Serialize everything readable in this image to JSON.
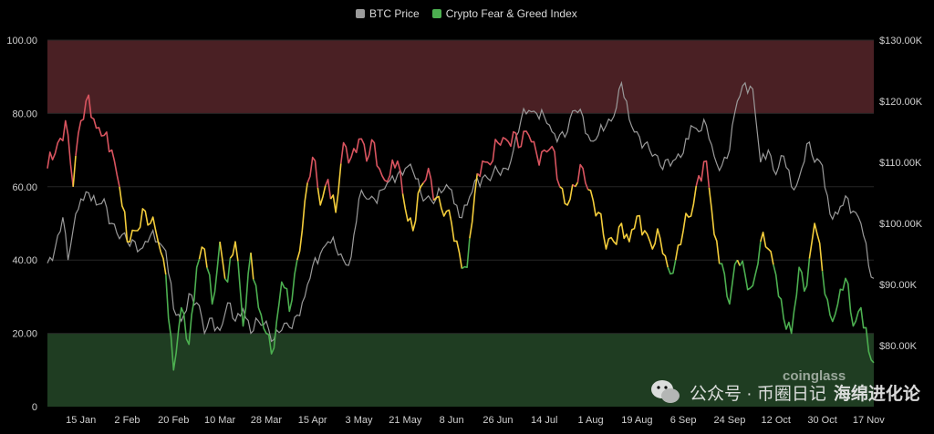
{
  "legend": {
    "btc_label": "BTC Price",
    "fg_label": "Crypto Fear & Greed Index"
  },
  "watermark": {
    "channel": "公众号 · 币圈日记",
    "account": "海绵进化论",
    "source_logo_text": "coinglass"
  },
  "colors": {
    "background": "#000000",
    "btc_line": "#9a9a9a",
    "fear_zone": "#1f3d22",
    "greed_zone": "#4a2024",
    "fear_line": "#4caf50",
    "neutral_line": "#f4cd3b",
    "greed_line": "#d9545f",
    "grid": "#262626",
    "tick_text": "#cfcfcf"
  },
  "chart_data": {
    "type": "line",
    "title": "",
    "grid": true,
    "legend_position": "top-center",
    "x_ticks": [
      {
        "label": "15 Jan",
        "i": 13
      },
      {
        "label": "2 Feb",
        "i": 31
      },
      {
        "label": "20 Feb",
        "i": 49
      },
      {
        "label": "10 Mar",
        "i": 67
      },
      {
        "label": "28 Mar",
        "i": 85
      },
      {
        "label": "15 Apr",
        "i": 103
      },
      {
        "label": "3 May",
        "i": 121
      },
      {
        "label": "21 May",
        "i": 139
      },
      {
        "label": "8 Jun",
        "i": 157
      },
      {
        "label": "26 Jun",
        "i": 175
      },
      {
        "label": "14 Jul",
        "i": 193
      },
      {
        "label": "1 Aug",
        "i": 211
      },
      {
        "label": "19 Aug",
        "i": 229
      },
      {
        "label": "6 Sep",
        "i": 247
      },
      {
        "label": "24 Sep",
        "i": 265
      },
      {
        "label": "12 Oct",
        "i": 283
      },
      {
        "label": "30 Oct",
        "i": 301
      },
      {
        "label": "17 Nov",
        "i": 319
      }
    ],
    "left_axis": {
      "ylim": [
        0,
        100
      ],
      "ticks": [
        "100.00",
        "80.00",
        "60.00",
        "40.00",
        "20.00",
        "0"
      ]
    },
    "right_axis": {
      "ylim": [
        70000,
        130000
      ],
      "ticks": [
        "$130.00K",
        "$120.00K",
        "$110.00K",
        "$100.00K",
        "$90.00K",
        "$80.00K"
      ]
    },
    "zones": [
      {
        "name": "greed",
        "from": 80,
        "to": 100
      },
      {
        "name": "fear",
        "from": 0,
        "to": 20
      }
    ],
    "thresholds": {
      "fear_below": 40,
      "greed_above": 60
    },
    "fg_keys": [
      [
        0,
        65
      ],
      [
        4,
        72
      ],
      [
        7,
        78
      ],
      [
        10,
        60
      ],
      [
        13,
        78
      ],
      [
        16,
        85
      ],
      [
        19,
        76
      ],
      [
        22,
        74
      ],
      [
        25,
        70
      ],
      [
        28,
        60
      ],
      [
        31,
        45
      ],
      [
        34,
        48
      ],
      [
        37,
        54
      ],
      [
        40,
        50
      ],
      [
        43,
        45
      ],
      [
        46,
        36
      ],
      [
        49,
        10
      ],
      [
        52,
        27
      ],
      [
        55,
        17
      ],
      [
        58,
        38
      ],
      [
        61,
        43
      ],
      [
        64,
        28
      ],
      [
        67,
        45
      ],
      [
        70,
        34
      ],
      [
        73,
        45
      ],
      [
        76,
        22
      ],
      [
        79,
        42
      ],
      [
        82,
        27
      ],
      [
        85,
        20
      ],
      [
        88,
        16
      ],
      [
        91,
        34
      ],
      [
        94,
        26
      ],
      [
        97,
        40
      ],
      [
        100,
        56
      ],
      [
        103,
        68
      ],
      [
        106,
        55
      ],
      [
        109,
        62
      ],
      [
        112,
        53
      ],
      [
        115,
        72
      ],
      [
        118,
        68
      ],
      [
        121,
        73
      ],
      [
        124,
        67
      ],
      [
        127,
        72
      ],
      [
        130,
        63
      ],
      [
        133,
        63
      ],
      [
        136,
        67
      ],
      [
        139,
        54
      ],
      [
        142,
        48
      ],
      [
        145,
        60
      ],
      [
        148,
        65
      ],
      [
        151,
        57
      ],
      [
        154,
        52
      ],
      [
        157,
        50
      ],
      [
        160,
        42
      ],
      [
        163,
        38
      ],
      [
        166,
        58
      ],
      [
        169,
        67
      ],
      [
        172,
        66
      ],
      [
        175,
        72
      ],
      [
        178,
        73
      ],
      [
        181,
        75
      ],
      [
        184,
        71
      ],
      [
        187,
        74
      ],
      [
        190,
        69
      ],
      [
        193,
        70
      ],
      [
        196,
        71
      ],
      [
        199,
        60
      ],
      [
        202,
        55
      ],
      [
        205,
        60
      ],
      [
        208,
        65
      ],
      [
        211,
        59
      ],
      [
        214,
        53
      ],
      [
        217,
        43
      ],
      [
        220,
        45
      ],
      [
        223,
        50
      ],
      [
        226,
        45
      ],
      [
        229,
        52
      ],
      [
        232,
        48
      ],
      [
        235,
        43
      ],
      [
        238,
        46
      ],
      [
        241,
        38
      ],
      [
        244,
        40
      ],
      [
        247,
        48
      ],
      [
        250,
        52
      ],
      [
        253,
        63
      ],
      [
        256,
        67
      ],
      [
        259,
        47
      ],
      [
        262,
        39
      ],
      [
        265,
        28
      ],
      [
        268,
        40
      ],
      [
        271,
        36
      ],
      [
        274,
        33
      ],
      [
        277,
        45
      ],
      [
        280,
        43
      ],
      [
        283,
        36
      ],
      [
        286,
        24
      ],
      [
        289,
        20
      ],
      [
        292,
        38
      ],
      [
        295,
        33
      ],
      [
        298,
        50
      ],
      [
        301,
        37
      ],
      [
        304,
        25
      ],
      [
        307,
        28
      ],
      [
        310,
        35
      ],
      [
        313,
        22
      ],
      [
        316,
        27
      ],
      [
        319,
        15
      ],
      [
        321,
        12
      ]
    ],
    "btc_keys": [
      [
        0,
        93500
      ],
      [
        3,
        96000
      ],
      [
        6,
        101000
      ],
      [
        8,
        94000
      ],
      [
        10,
        99000
      ],
      [
        13,
        104000
      ],
      [
        16,
        105000
      ],
      [
        19,
        103000
      ],
      [
        22,
        104000
      ],
      [
        25,
        100000
      ],
      [
        28,
        97500
      ],
      [
        31,
        97000
      ],
      [
        34,
        97000
      ],
      [
        37,
        96000
      ],
      [
        40,
        98000
      ],
      [
        43,
        97000
      ],
      [
        46,
        95500
      ],
      [
        49,
        86000
      ],
      [
        52,
        84000
      ],
      [
        55,
        88500
      ],
      [
        58,
        87000
      ],
      [
        61,
        82000
      ],
      [
        64,
        84500
      ],
      [
        67,
        82500
      ],
      [
        70,
        87000
      ],
      [
        73,
        84000
      ],
      [
        76,
        86000
      ],
      [
        79,
        82000
      ],
      [
        82,
        84000
      ],
      [
        85,
        84000
      ],
      [
        88,
        81000
      ],
      [
        91,
        82500
      ],
      [
        94,
        83000
      ],
      [
        97,
        85000
      ],
      [
        100,
        88000
      ],
      [
        103,
        93000
      ],
      [
        106,
        95000
      ],
      [
        109,
        97000
      ],
      [
        112,
        96000
      ],
      [
        115,
        94000
      ],
      [
        118,
        94500
      ],
      [
        121,
        104000
      ],
      [
        124,
        104000
      ],
      [
        127,
        104000
      ],
      [
        130,
        105500
      ],
      [
        133,
        107000
      ],
      [
        136,
        108000
      ],
      [
        139,
        109000
      ],
      [
        142,
        108500
      ],
      [
        145,
        105000
      ],
      [
        148,
        104500
      ],
      [
        151,
        104000
      ],
      [
        154,
        105500
      ],
      [
        157,
        105500
      ],
      [
        160,
        101000
      ],
      [
        163,
        103000
      ],
      [
        166,
        107000
      ],
      [
        169,
        107500
      ],
      [
        172,
        107000
      ],
      [
        175,
        108500
      ],
      [
        178,
        109000
      ],
      [
        181,
        112000
      ],
      [
        184,
        117000
      ],
      [
        187,
        118500
      ],
      [
        190,
        118000
      ],
      [
        193,
        117500
      ],
      [
        196,
        115000
      ],
      [
        199,
        114500
      ],
      [
        202,
        115000
      ],
      [
        205,
        118500
      ],
      [
        208,
        117500
      ],
      [
        211,
        113500
      ],
      [
        214,
        114500
      ],
      [
        217,
        116000
      ],
      [
        220,
        117500
      ],
      [
        223,
        123000
      ],
      [
        226,
        117000
      ],
      [
        229,
        115000
      ],
      [
        232,
        113000
      ],
      [
        235,
        111000
      ],
      [
        238,
        109500
      ],
      [
        241,
        110500
      ],
      [
        244,
        110500
      ],
      [
        247,
        111500
      ],
      [
        250,
        116000
      ],
      [
        253,
        115000
      ],
      [
        256,
        116000
      ],
      [
        259,
        111000
      ],
      [
        262,
        109500
      ],
      [
        265,
        112000
      ],
      [
        268,
        120000
      ],
      [
        271,
        123000
      ],
      [
        274,
        122000
      ],
      [
        277,
        110000
      ],
      [
        280,
        112000
      ],
      [
        283,
        108000
      ],
      [
        286,
        111000
      ],
      [
        289,
        106000
      ],
      [
        292,
        107500
      ],
      [
        295,
        113000
      ],
      [
        298,
        110000
      ],
      [
        301,
        109500
      ],
      [
        304,
        101500
      ],
      [
        307,
        101500
      ],
      [
        310,
        104500
      ],
      [
        313,
        102000
      ],
      [
        316,
        100000
      ],
      [
        319,
        93000
      ],
      [
        321,
        91000
      ]
    ],
    "n_points": 322
  }
}
